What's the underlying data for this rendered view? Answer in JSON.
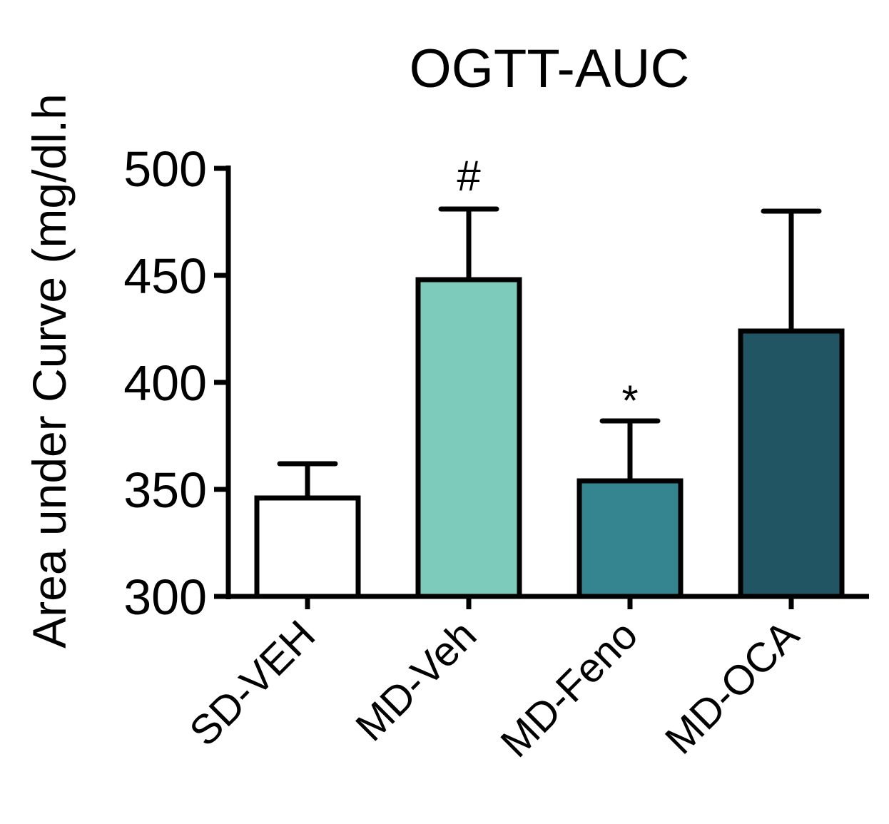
{
  "chart_data": {
    "type": "bar",
    "title": "OGTT-AUC",
    "xlabel": "",
    "ylabel": "Area under Curve (mg/dl.h",
    "ylim": [
      300,
      500
    ],
    "yticks": [
      300,
      350,
      400,
      450,
      500
    ],
    "categories": [
      "SD-VEH",
      "MD-Veh",
      "MD-Feno",
      "MD-OCA"
    ],
    "values": [
      346,
      448,
      354,
      424
    ],
    "errors": [
      16,
      33,
      28,
      56
    ],
    "colors": [
      "#ffffff",
      "#7dccbb",
      "#348590",
      "#215563"
    ],
    "annotations": [
      "",
      "#",
      "*",
      ""
    ],
    "grid": false
  }
}
